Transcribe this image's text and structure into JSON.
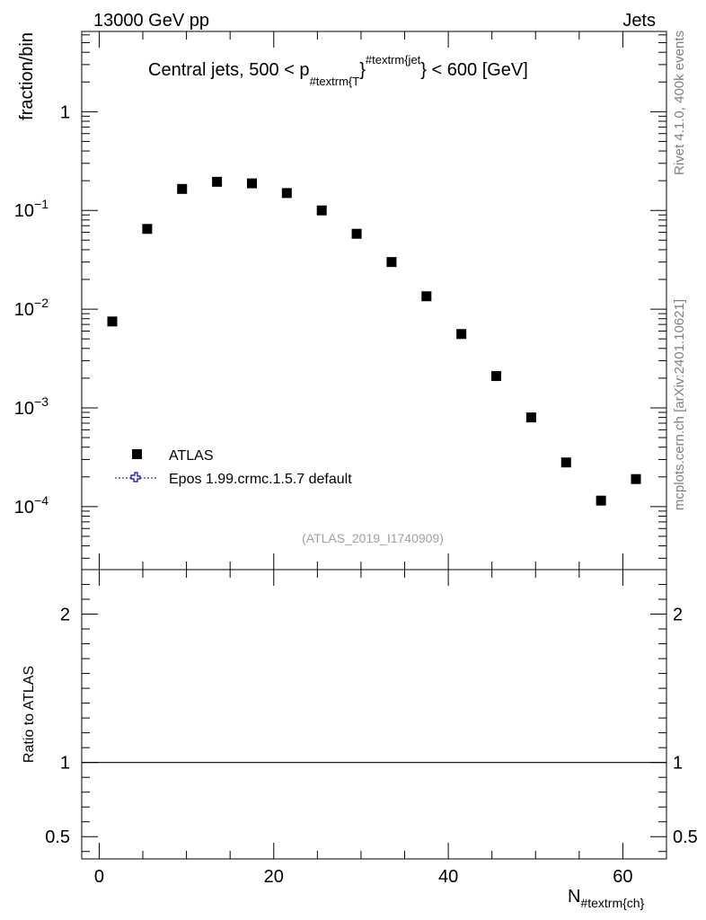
{
  "header": {
    "left": "13000 GeV pp",
    "right": "Jets"
  },
  "side_labels": {
    "rivet": "Rivet 4.1.0,  400k events",
    "mcplots": "mcplots.cern.ch [arXiv:2401.10621]"
  },
  "analysis_id": "(ATLAS_2019_I1740909)",
  "chart_data": [
    {
      "type": "scatter",
      "title_parts": {
        "prefix": "Central jets, 500 < p",
        "sub": "#textrm{T",
        "mid": "}",
        "sup": "#textrm{jet",
        "suffix": "} < 600 [GeV]"
      },
      "ylabel": "fraction/bin",
      "yscale": "log",
      "ylim": [
        2.3e-05,
        6.5
      ],
      "xlim": [
        -2,
        65
      ],
      "y_tick_labels": [
        {
          "value": 1,
          "base": "1",
          "exp": ""
        },
        {
          "value": 0.1,
          "base": "10",
          "exp": "−1"
        },
        {
          "value": 0.01,
          "base": "10",
          "exp": "−2"
        },
        {
          "value": 0.001,
          "base": "10",
          "exp": "−3"
        },
        {
          "value": 0.0001,
          "base": "10",
          "exp": "−4"
        }
      ],
      "legend": [
        {
          "label": "ATLAS",
          "marker": "filled-square",
          "color": "#000000"
        },
        {
          "label": "Epos 1.99.crmc.1.5.7 default",
          "marker": "open-cross",
          "color": "#0000cc"
        }
      ],
      "series": [
        {
          "name": "ATLAS",
          "x": [
            1.5,
            5.5,
            9.5,
            13.5,
            17.5,
            21.5,
            25.5,
            29.5,
            33.5,
            37.5,
            41.5,
            45.5,
            49.5,
            53.5,
            57.5,
            61.5
          ],
          "y": [
            0.0075,
            0.065,
            0.165,
            0.195,
            0.188,
            0.15,
            0.1,
            0.058,
            0.03,
            0.0135,
            0.0056,
            0.0021,
            0.0008,
            0.00028,
            0.000115,
            0.00019
          ]
        }
      ]
    },
    {
      "type": "line",
      "ylabel": "Ratio to ATLAS",
      "xlabel_main": "N",
      "xlabel_sub": "#textrm{ch}",
      "xlim": [
        -2,
        65
      ],
      "ylim": [
        0.35,
        2.3
      ],
      "x_ticks": [
        0,
        20,
        40,
        60
      ],
      "x_tick_labels": [
        "0",
        "20",
        "40",
        "60"
      ],
      "y_ticks": [
        0.5,
        1,
        2
      ],
      "y_tick_labels": [
        "0.5",
        "1",
        "2"
      ],
      "reference_line": 1
    }
  ]
}
